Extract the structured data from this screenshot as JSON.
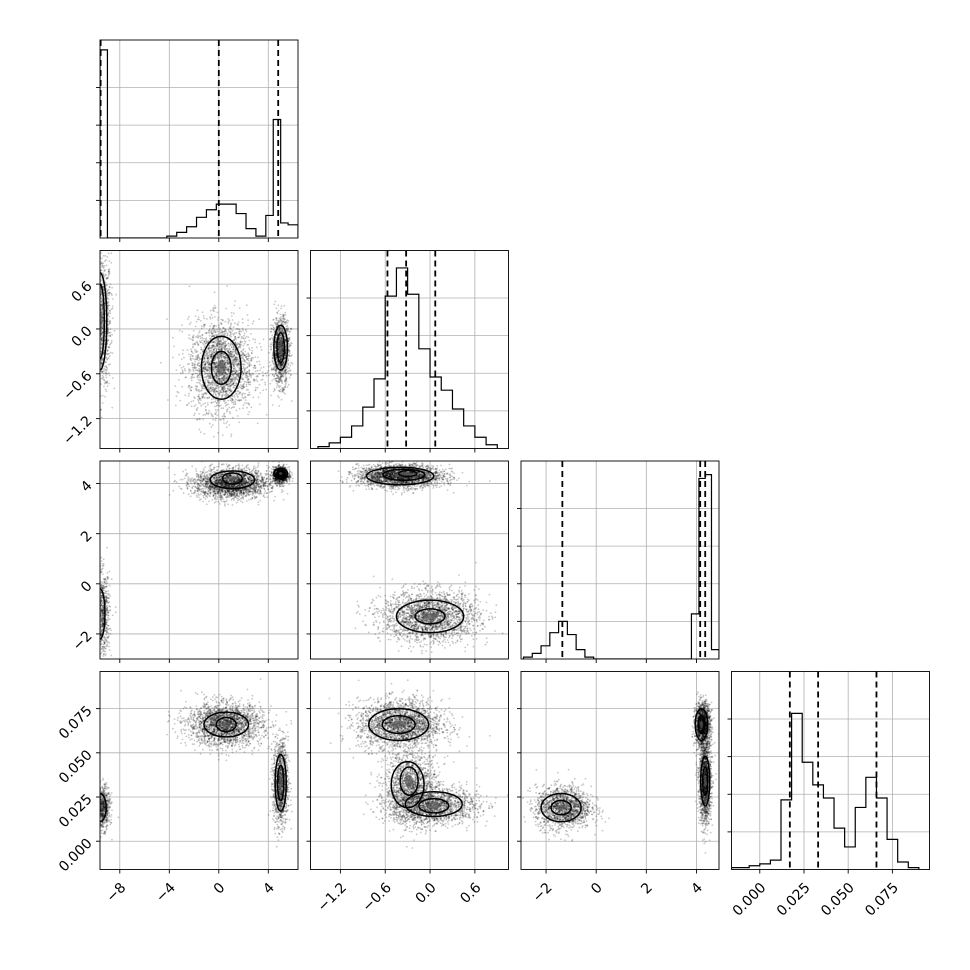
{
  "chart_data": {
    "type": "corner",
    "params": [
      {
        "ticks": [
          -8,
          -4,
          0,
          4
        ],
        "tick_labels": [
          "−8",
          "−4",
          "0",
          "4"
        ],
        "lim": [
          -9.6,
          6.4
        ]
      },
      {
        "ticks": [
          -1.2,
          -0.6,
          0.0,
          0.6
        ],
        "tick_labels": [
          "−1.2",
          "−0.6",
          "0.0",
          "0.6"
        ],
        "lim": [
          -1.6,
          1.05
        ]
      },
      {
        "ticks": [
          -2,
          0,
          2,
          4
        ],
        "tick_labels": [
          "−2",
          "0",
          "2",
          "4"
        ],
        "lim": [
          -3.0,
          4.9
        ]
      },
      {
        "ticks": [
          0.0,
          0.025,
          0.05,
          0.075
        ],
        "tick_labels": [
          "0.000",
          "0.025",
          "0.050",
          "0.075"
        ],
        "lim": [
          -0.016,
          0.096
        ]
      }
    ],
    "histograms": [
      {
        "bins": [
          [
            -9.6,
            -9.0
          ],
          [
            -9.0,
            -8.2
          ],
          [
            -8.2,
            -7.4
          ],
          [
            -7.4,
            -6.6
          ],
          [
            -6.6,
            -5.8
          ],
          [
            -5.8,
            -5.0
          ],
          [
            -5.0,
            -4.2
          ],
          [
            -4.2,
            -3.4
          ],
          [
            -3.4,
            -2.6
          ],
          [
            -2.6,
            -1.8
          ],
          [
            -1.8,
            -1.0
          ],
          [
            -1.0,
            -0.2
          ],
          [
            -0.2,
            0.6
          ],
          [
            0.6,
            1.4
          ],
          [
            1.4,
            2.2
          ],
          [
            2.2,
            3.0
          ],
          [
            3.0,
            3.8
          ],
          [
            3.8,
            4.4
          ],
          [
            4.4,
            5.0
          ],
          [
            5.0,
            5.6
          ],
          [
            5.6,
            6.4
          ]
        ],
        "counts": [
          1.0,
          0,
          0,
          0,
          0,
          0,
          0,
          0.01,
          0.03,
          0.06,
          0.11,
          0.15,
          0.18,
          0.18,
          0.13,
          0.05,
          0.01,
          0.12,
          0.63,
          0.08,
          0.07
        ],
        "quantiles": [
          -9.55,
          0.0,
          4.8
        ]
      },
      {
        "bins": [
          [
            -1.5,
            -1.35
          ],
          [
            -1.35,
            -1.2
          ],
          [
            -1.2,
            -1.05
          ],
          [
            -1.05,
            -0.9
          ],
          [
            -0.9,
            -0.75
          ],
          [
            -0.75,
            -0.6
          ],
          [
            -0.6,
            -0.45
          ],
          [
            -0.45,
            -0.3
          ],
          [
            -0.3,
            -0.15
          ],
          [
            -0.15,
            0.0
          ],
          [
            0.0,
            0.15
          ],
          [
            0.15,
            0.3
          ],
          [
            0.3,
            0.45
          ],
          [
            0.45,
            0.6
          ],
          [
            0.6,
            0.75
          ],
          [
            0.75,
            0.9
          ]
        ],
        "counts": [
          0.01,
          0.03,
          0.06,
          0.12,
          0.22,
          0.37,
          0.81,
          0.96,
          0.82,
          0.53,
          0.38,
          0.31,
          0.21,
          0.12,
          0.06,
          0.02
        ],
        "quantiles": [
          -0.57,
          -0.32,
          0.07
        ]
      },
      {
        "bins": [
          [
            -2.9,
            -2.55
          ],
          [
            -2.55,
            -2.2
          ],
          [
            -2.2,
            -1.85
          ],
          [
            -1.85,
            -1.5
          ],
          [
            -1.5,
            -1.15
          ],
          [
            -1.15,
            -0.8
          ],
          [
            -0.8,
            -0.45
          ],
          [
            -0.45,
            -0.1
          ],
          [
            -0.1,
            3.8
          ],
          [
            3.8,
            4.1
          ],
          [
            4.1,
            4.35
          ],
          [
            4.35,
            4.6
          ],
          [
            4.6,
            4.9
          ]
        ],
        "counts": [
          0.01,
          0.03,
          0.07,
          0.14,
          0.2,
          0.13,
          0.05,
          0.01,
          0.0,
          0.24,
          0.96,
          0.98,
          0.05
        ],
        "quantiles": [
          -1.35,
          4.15,
          4.35
        ]
      },
      {
        "bins": [
          [
            -0.016,
            -0.006
          ],
          [
            -0.006,
            0.0
          ],
          [
            0.0,
            0.006
          ],
          [
            0.006,
            0.012
          ],
          [
            0.012,
            0.018
          ],
          [
            0.018,
            0.024
          ],
          [
            0.024,
            0.03
          ],
          [
            0.03,
            0.036
          ],
          [
            0.036,
            0.042
          ],
          [
            0.042,
            0.048
          ],
          [
            0.048,
            0.054
          ],
          [
            0.054,
            0.06
          ],
          [
            0.06,
            0.066
          ],
          [
            0.066,
            0.072
          ],
          [
            0.072,
            0.078
          ],
          [
            0.078,
            0.084
          ],
          [
            0.084,
            0.09
          ]
        ],
        "counts": [
          0.01,
          0.02,
          0.03,
          0.05,
          0.37,
          0.83,
          0.57,
          0.45,
          0.38,
          0.22,
          0.12,
          0.33,
          0.49,
          0.38,
          0.16,
          0.04,
          0.01
        ],
        "quantiles": [
          0.017,
          0.033,
          0.066
        ]
      }
    ],
    "clusters_2d": [
      {
        "pair": [
          1,
          0
        ],
        "blobs": [
          [
            -9.4,
            0.1,
            0.35,
            0.45,
            900
          ],
          [
            0.2,
            -0.5,
            1.3,
            0.3,
            2200
          ],
          [
            5.0,
            -0.3,
            0.35,
            0.22,
            1200
          ]
        ]
      },
      {
        "pair": [
          2,
          0
        ],
        "blobs": [
          [
            -9.4,
            -1.2,
            0.3,
            0.8,
            700
          ],
          [
            1.0,
            4.0,
            1.5,
            0.3,
            2200
          ],
          [
            5.0,
            4.35,
            0.3,
            0.15,
            1200
          ]
        ]
      },
      {
        "pair": [
          3,
          0
        ],
        "blobs": [
          [
            -9.4,
            0.019,
            0.3,
            0.006,
            700
          ],
          [
            0.5,
            0.066,
            1.5,
            0.006,
            2200
          ],
          [
            5.0,
            0.033,
            0.3,
            0.012,
            1200
          ]
        ]
      },
      {
        "pair": [
          2,
          1
        ],
        "blobs": [
          [
            -0.4,
            4.3,
            0.28,
            0.22,
            2400
          ],
          [
            0.0,
            -1.3,
            0.32,
            0.5,
            2200
          ]
        ]
      },
      {
        "pair": [
          3,
          1
        ],
        "blobs": [
          [
            -0.4,
            0.066,
            0.28,
            0.007,
            2200
          ],
          [
            -0.25,
            0.03,
            0.18,
            0.01,
            1500
          ],
          [
            0.05,
            0.02,
            0.3,
            0.005,
            1500
          ]
        ]
      },
      {
        "pair": [
          3,
          2
        ],
        "blobs": [
          [
            -1.3,
            0.019,
            0.55,
            0.006,
            1500
          ],
          [
            4.25,
            0.066,
            0.15,
            0.006,
            1500
          ],
          [
            4.35,
            0.034,
            0.12,
            0.012,
            1500
          ]
        ]
      }
    ],
    "contours_2d": [
      {
        "pair": [
          1,
          0
        ],
        "rings": [
          [
            -9.6,
            0.1,
            0.55,
            0.65
          ],
          [
            -9.6,
            0.1,
            0.35,
            0.5
          ],
          [
            0.2,
            -0.52,
            1.6,
            0.42
          ],
          [
            0.2,
            -0.52,
            0.8,
            0.22
          ],
          [
            5.0,
            -0.25,
            0.55,
            0.3
          ],
          [
            5.0,
            -0.25,
            0.3,
            0.2
          ]
        ]
      },
      {
        "pair": [
          2,
          0
        ],
        "rings": [
          [
            -9.6,
            -1.2,
            0.4,
            1.0
          ],
          [
            1.1,
            4.15,
            1.8,
            0.35
          ],
          [
            1.1,
            4.2,
            0.8,
            0.22
          ],
          [
            5.0,
            4.4,
            0.55,
            0.2
          ],
          [
            5.0,
            4.4,
            0.3,
            0.12
          ]
        ]
      },
      {
        "pair": [
          3,
          0
        ],
        "rings": [
          [
            -9.6,
            0.019,
            0.5,
            0.008
          ],
          [
            0.6,
            0.066,
            1.8,
            0.007
          ],
          [
            0.6,
            0.066,
            0.8,
            0.004
          ],
          [
            5.0,
            0.033,
            0.45,
            0.016
          ],
          [
            5.0,
            0.033,
            0.25,
            0.01
          ]
        ]
      },
      {
        "pair": [
          2,
          1
        ],
        "rings": [
          [
            -0.4,
            4.3,
            0.45,
            0.35
          ],
          [
            -0.35,
            4.35,
            0.28,
            0.22
          ],
          [
            -0.3,
            4.4,
            0.12,
            0.12
          ],
          [
            0.0,
            -1.3,
            0.45,
            0.65
          ],
          [
            0.0,
            -1.3,
            0.2,
            0.3
          ]
        ]
      },
      {
        "pair": [
          3,
          1
        ],
        "rings": [
          [
            -0.42,
            0.066,
            0.4,
            0.009
          ],
          [
            -0.42,
            0.066,
            0.22,
            0.005
          ],
          [
            -0.3,
            0.032,
            0.22,
            0.013
          ],
          [
            -0.28,
            0.034,
            0.12,
            0.008
          ],
          [
            0.05,
            0.021,
            0.38,
            0.007
          ],
          [
            0.05,
            0.02,
            0.2,
            0.004
          ]
        ]
      },
      {
        "pair": [
          3,
          2
        ],
        "rings": [
          [
            -1.4,
            0.019,
            0.8,
            0.008
          ],
          [
            -1.4,
            0.019,
            0.4,
            0.004
          ],
          [
            4.2,
            0.066,
            0.25,
            0.009
          ],
          [
            4.2,
            0.066,
            0.13,
            0.005
          ],
          [
            4.35,
            0.034,
            0.18,
            0.014
          ],
          [
            4.35,
            0.034,
            0.1,
            0.008
          ]
        ]
      }
    ],
    "grid": true
  }
}
